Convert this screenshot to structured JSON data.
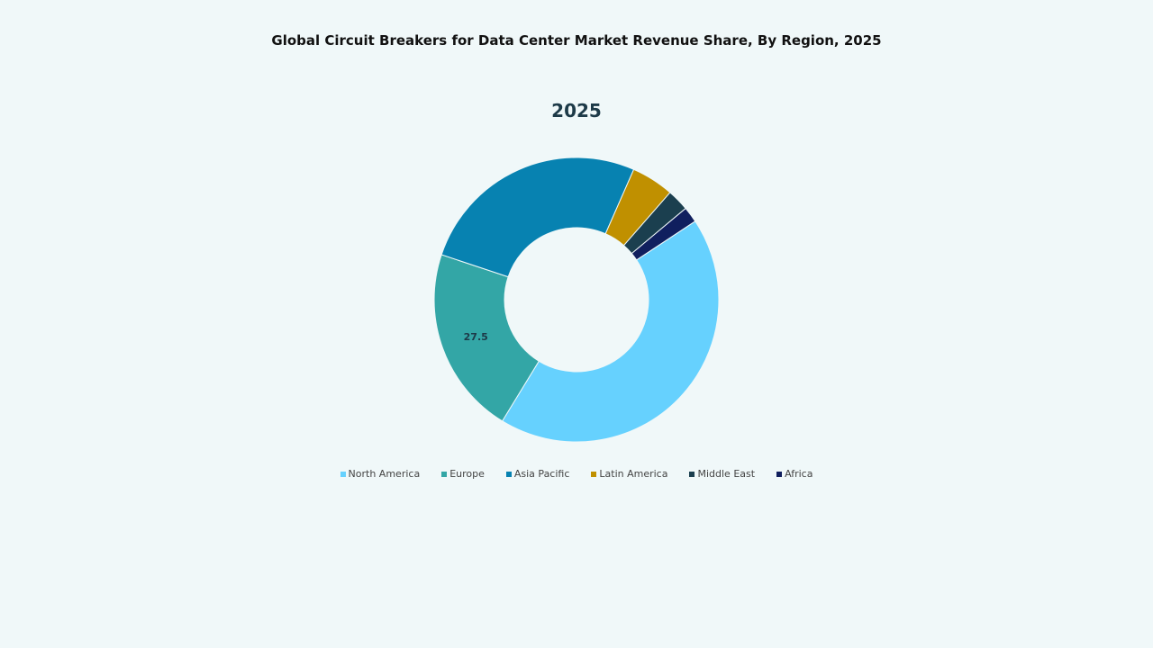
{
  "chart_data": {
    "type": "pie",
    "variant": "donut",
    "title": "Global Circuit Breakers for Data Center Market Revenue Share, By Region, 2025",
    "subtitle": "2025",
    "categories": [
      "North America",
      "Europe",
      "Asia Pacific",
      "Latin America",
      "Middle East",
      "Africa"
    ],
    "values": [
      55.3,
      27.5,
      34.0,
      6.2,
      3.2,
      2.3
    ],
    "colors": [
      "#66d1fe",
      "#33a6a6",
      "#0782b1",
      "#c09000",
      "#1b3f4f",
      "#101f5e"
    ],
    "data_labels": [
      {
        "category": "Europe",
        "text": "27.5"
      }
    ],
    "legend_position": "bottom"
  }
}
